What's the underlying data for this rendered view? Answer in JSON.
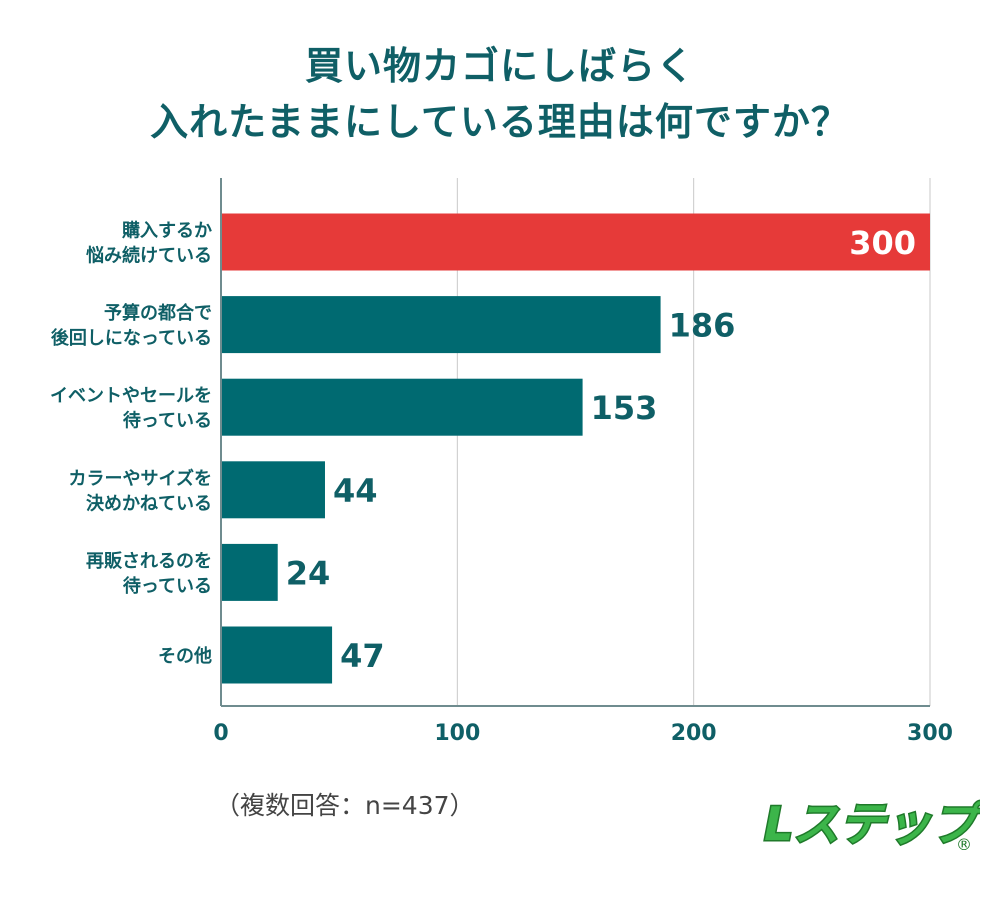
{
  "title": {
    "line1": "買い物カゴにしばらく",
    "line2": "入れたままにしている理由は何ですか？"
  },
  "colors": {
    "highlight_bar": "#e63a39",
    "bar": "#006a71",
    "title": "#0f5f66",
    "axis": "#6f8c8f"
  },
  "chart_data": {
    "type": "bar",
    "orientation": "horizontal",
    "categories": [
      [
        "購入するか",
        "悩み続けている"
      ],
      [
        "予算の都合で",
        "後回しになっている"
      ],
      [
        "イベントやセールを",
        "待っている"
      ],
      [
        "カラーやサイズを",
        "決めかねている"
      ],
      [
        "再販されるのを",
        "待っている"
      ],
      [
        "その他"
      ]
    ],
    "values": [
      300,
      186,
      153,
      44,
      24,
      47
    ],
    "xlim": [
      0,
      300
    ],
    "xticks": [
      0,
      100,
      200,
      300
    ],
    "highlight_index": 0,
    "grid": true
  },
  "footnote": "（複数回答：n=437）",
  "logo": {
    "text": "Lステップ",
    "mark": "®",
    "icon": "lstep-logo"
  }
}
